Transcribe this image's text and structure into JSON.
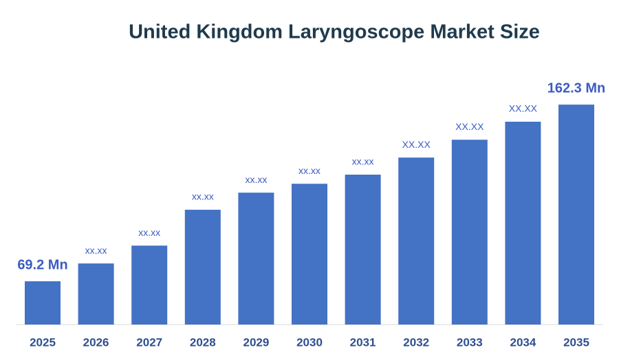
{
  "chart_data": {
    "type": "bar",
    "title": "United Kingdom Laryngoscope Market Size",
    "categories": [
      "2025",
      "2026",
      "2027",
      "2028",
      "2029",
      "2030",
      "2031",
      "2032",
      "2033",
      "2034",
      "2035"
    ],
    "values": [
      69.2,
      78.6,
      88.0,
      106.9,
      115.9,
      120.6,
      125.4,
      134.4,
      143.8,
      153.3,
      162.3
    ],
    "value_labels": [
      "69.2 Mn",
      "xx.xx",
      "xx.xx",
      "xx.xx",
      "xx.xx",
      "xx.xx",
      "xx.xx",
      "XX.XX",
      "XX.XX",
      "XX.XX",
      "162.3 Mn"
    ],
    "color": "#4472c4",
    "ylim": [
      46.4,
      181.2
    ]
  }
}
